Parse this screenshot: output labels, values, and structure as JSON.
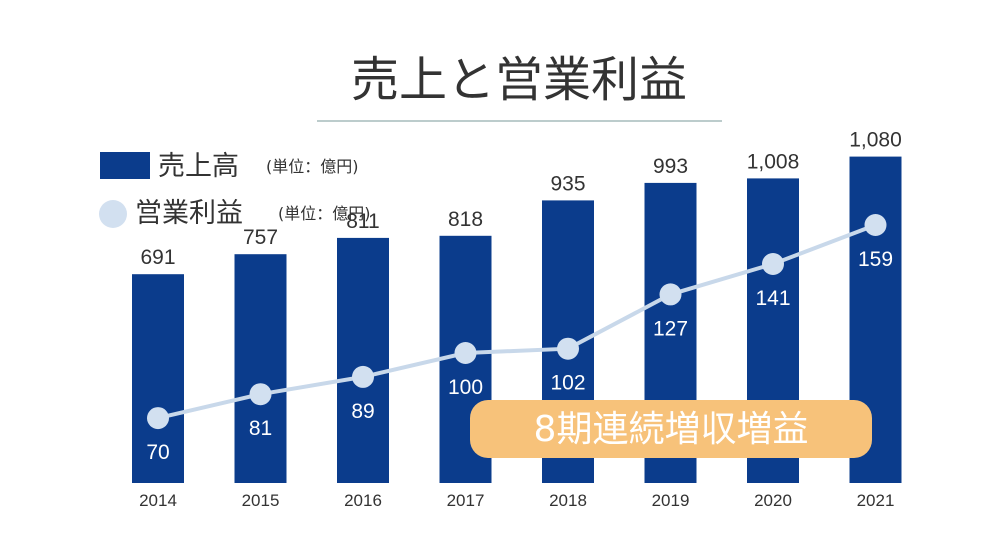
{
  "chart_data": {
    "type": "bar",
    "title": "売上と営業利益",
    "categories": [
      "2014",
      "2015",
      "2016",
      "2017",
      "2018",
      "2019",
      "2020",
      "2021"
    ],
    "series": [
      {
        "name": "売上高",
        "unit_note": "(単位：億円)",
        "type": "bar",
        "values": [
          691,
          757,
          811,
          818,
          935,
          993,
          1008,
          1080
        ],
        "labels": [
          "691",
          "757",
          "811",
          "818",
          "935",
          "993",
          "1,008",
          "1,080"
        ]
      },
      {
        "name": "営業利益",
        "unit_note": "(単位：億円)",
        "type": "line",
        "values": [
          70,
          81,
          89,
          100,
          102,
          127,
          141,
          159
        ],
        "labels": [
          "70",
          "81",
          "89",
          "100",
          "102",
          "127",
          "141",
          "159"
        ]
      }
    ],
    "ylim": [
      0,
      1100
    ],
    "grid": false,
    "legend_position": "top-left",
    "annotation": "8期連続増収増益"
  },
  "colors": {
    "title": "#333333",
    "title_rule": "#7a9a9a",
    "bar": "#0b3c8c",
    "line": "#c8d8ea",
    "marker": "#d2e0f0",
    "label_dark": "#333333",
    "label_on_bar": "#ffffff",
    "annotation_bg": "#f7c27a",
    "annotation_text": "#ffffff"
  }
}
